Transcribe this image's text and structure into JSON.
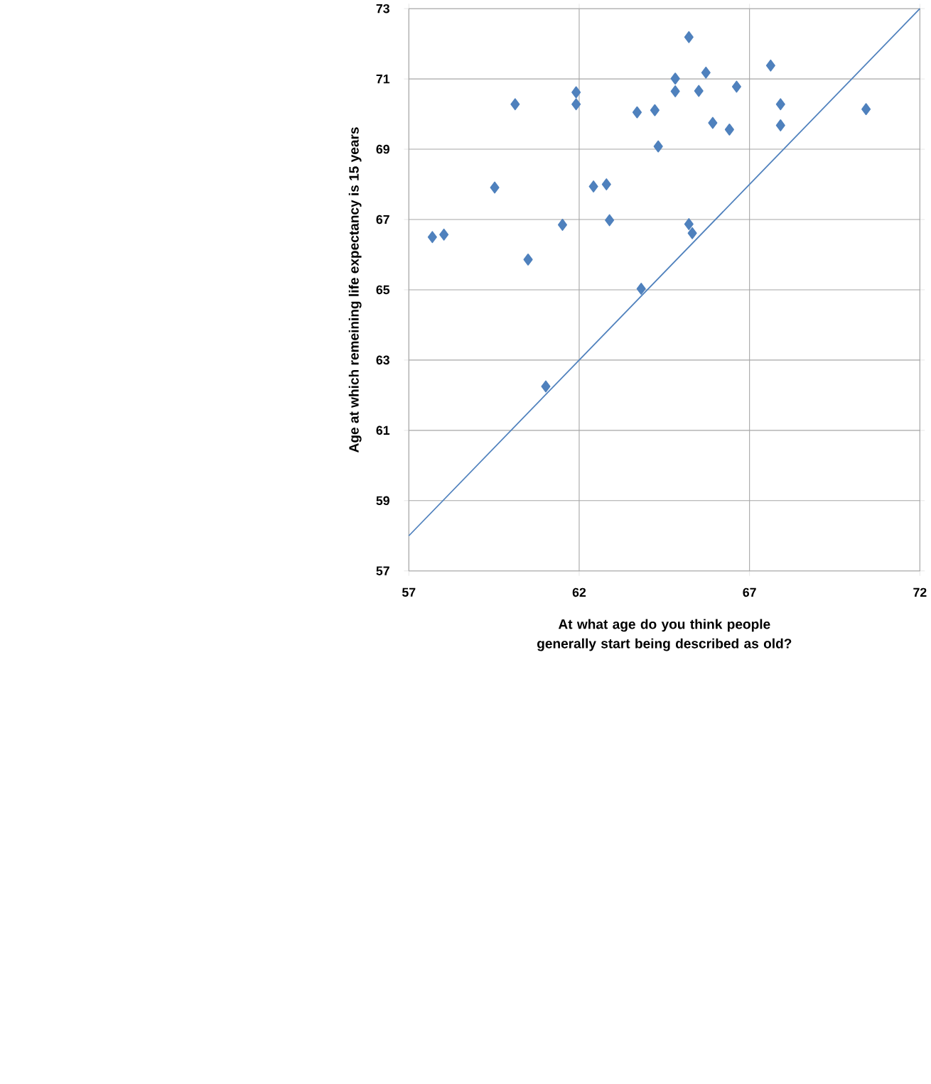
{
  "chart_data": {
    "type": "scatter",
    "xlabel": "At what age do you think people generally start being described as old?",
    "ylabel": "Age at which remeining life expectancy is 15 years",
    "xlim": [
      57,
      72
    ],
    "xticks": [
      57,
      62,
      67,
      72
    ],
    "ylim": [
      57,
      73
    ],
    "yticks": [
      57,
      59,
      61,
      63,
      65,
      67,
      69,
      71,
      73
    ],
    "grid": true,
    "marker": "diamond",
    "series": [
      {
        "color": "#4f81bd",
        "x": [
          57.69,
          58.03,
          59.52,
          60.12,
          60.5,
          61.51,
          61.91,
          61.91,
          62.42,
          62.8,
          62.89,
          63.7,
          65.22,
          64.82,
          65.72,
          64.82,
          65.51,
          66.62,
          67.62,
          64.22,
          67.91,
          70.42,
          65.92,
          66.41,
          67.91,
          64.32,
          65.22,
          65.32,
          63.82,
          61.02
        ],
        "values": [
          66.5,
          66.57,
          67.91,
          70.28,
          65.86,
          66.85,
          70.62,
          70.28,
          67.94,
          68.0,
          66.98,
          70.05,
          72.19,
          71.01,
          71.18,
          70.65,
          70.66,
          70.78,
          71.38,
          70.11,
          70.28,
          70.14,
          69.75,
          69.56,
          69.68,
          69.08,
          66.87,
          66.61,
          65.03,
          62.25
        ]
      },
      {
        "type": "line",
        "marker": "none",
        "color": "#4f81bd",
        "x": [
          57,
          72
        ],
        "values": [
          58,
          73
        ]
      }
    ]
  }
}
